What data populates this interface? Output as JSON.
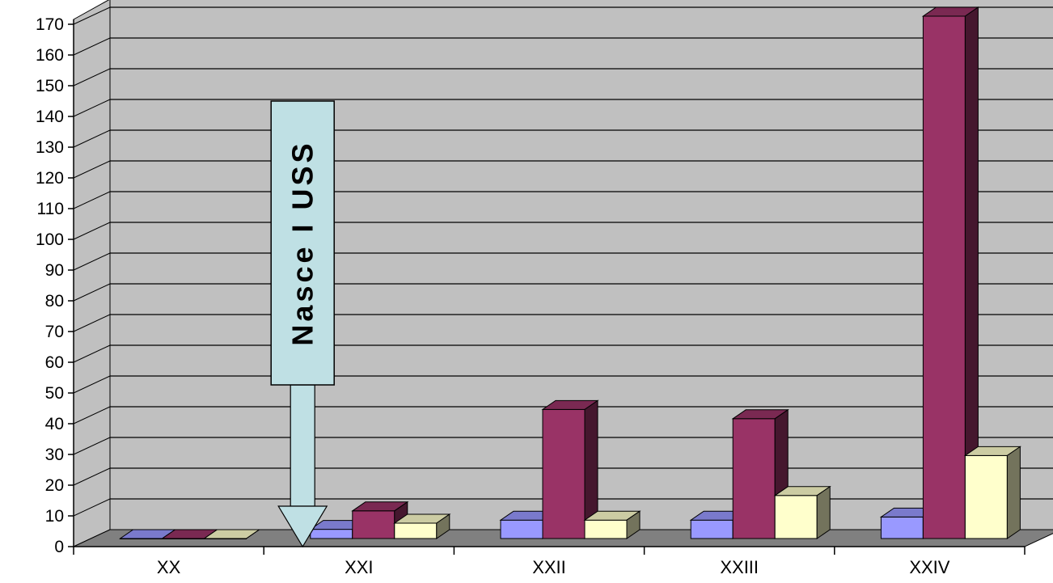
{
  "chart_data": {
    "type": "bar",
    "categories": [
      "XX",
      "XXI",
      "XXII",
      "XXIII",
      "XXIV"
    ],
    "series": [
      {
        "values": [
          0,
          3,
          6,
          6,
          7
        ],
        "color": "#9999ff"
      },
      {
        "values": [
          0,
          9,
          42,
          39,
          170
        ],
        "color": "#993366"
      },
      {
        "values": [
          0,
          5,
          6,
          14,
          27
        ],
        "color": "#ffffcc"
      }
    ],
    "ylim": [
      0,
      170
    ],
    "y_ticks": [
      0,
      10,
      20,
      30,
      40,
      50,
      60,
      70,
      80,
      90,
      100,
      110,
      120,
      130,
      140,
      150,
      160,
      170
    ],
    "grid": true,
    "legend": "none",
    "style": "3d-clustered-columns",
    "wall_color": "#c0c0c0",
    "floor_color": "#808080",
    "annotation": {
      "text": "Nasce I USS",
      "category": "XXI",
      "box_color": "#bfe0e4"
    }
  }
}
